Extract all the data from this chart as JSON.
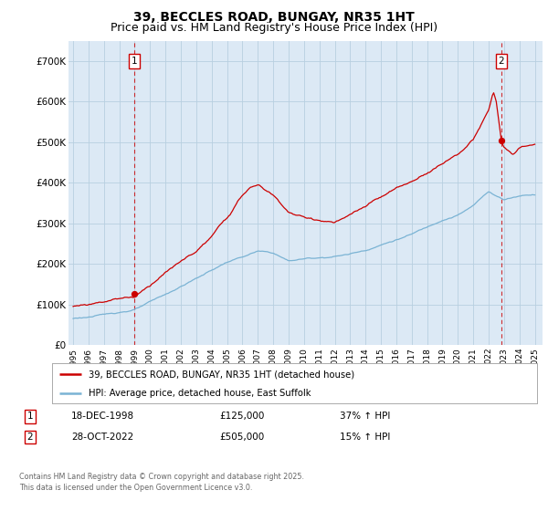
{
  "title_line1": "39, BECCLES ROAD, BUNGAY, NR35 1HT",
  "title_line2": "Price paid vs. HM Land Registry's House Price Index (HPI)",
  "ylim": [
    0,
    750000
  ],
  "yticks": [
    0,
    100000,
    200000,
    300000,
    400000,
    500000,
    600000,
    700000
  ],
  "ytick_labels": [
    "£0",
    "£100K",
    "£200K",
    "£300K",
    "£400K",
    "£500K",
    "£600K",
    "£700K"
  ],
  "xlim_start": 1994.7,
  "xlim_end": 2025.5,
  "xtick_years": [
    1995,
    1996,
    1997,
    1998,
    1999,
    2000,
    2001,
    2002,
    2003,
    2004,
    2005,
    2006,
    2007,
    2008,
    2009,
    2010,
    2011,
    2012,
    2013,
    2014,
    2015,
    2016,
    2017,
    2018,
    2019,
    2020,
    2021,
    2022,
    2023,
    2024,
    2025
  ],
  "plot_bg_color": "#dce9f5",
  "figure_bg_color": "#ffffff",
  "red_line_color": "#cc0000",
  "blue_line_color": "#7ab3d4",
  "sale1_x": 1998.97,
  "sale1_y": 125000,
  "sale2_x": 2022.83,
  "sale2_y": 505000,
  "legend_entry1": "39, BECCLES ROAD, BUNGAY, NR35 1HT (detached house)",
  "legend_entry2": "HPI: Average price, detached house, East Suffolk",
  "annotation1_date": "18-DEC-1998",
  "annotation1_price": "£125,000",
  "annotation1_hpi": "37% ↑ HPI",
  "annotation2_date": "28-OCT-2022",
  "annotation2_price": "£505,000",
  "annotation2_hpi": "15% ↑ HPI",
  "footer": "Contains HM Land Registry data © Crown copyright and database right 2025.\nThis data is licensed under the Open Government Licence v3.0.",
  "grid_color": "#b8cfe0",
  "title_fontsize": 10,
  "subtitle_fontsize": 9
}
